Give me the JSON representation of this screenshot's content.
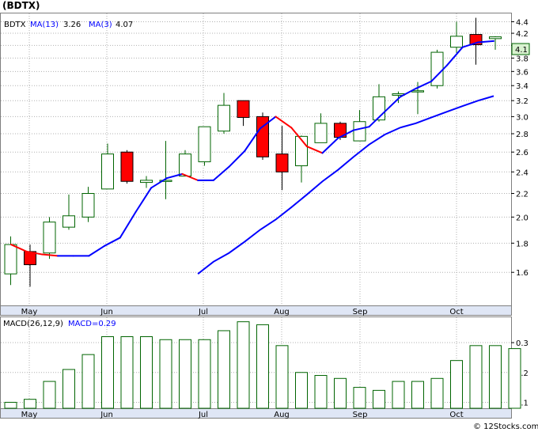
{
  "title": "(BDTX)",
  "watermark": "© 12Stocks.com",
  "price_panel": {
    "legend": {
      "ticker": "BDTX",
      "ma_fast_label": "MA(13)",
      "ma_fast_value": "3.26",
      "ma_slow_label": "MA(3)",
      "ma_slow_value": "4.07"
    },
    "last_price_label": "4.1"
  },
  "macd_panel": {
    "label": "MACD(26,12,9)",
    "value_label": "MACD=0.29"
  },
  "colors": {
    "up_border": "#006400",
    "down_fill": "#ff0000",
    "ma13": "#0000ff",
    "ma3_down": "#ff0000",
    "ma3_up": "#0000ff",
    "macd_bar": "#006400",
    "axis_bar": "#dfe6f5",
    "grid": "#b0b0b0"
  },
  "chart_data": [
    {
      "type": "candlestick",
      "title": "(BDTX)",
      "x_tick_labels": [
        "May",
        "Jun",
        "Jul",
        "Aug",
        "Sep",
        "Oct"
      ],
      "y_tick_labels": [
        "1.6",
        "1.8",
        "2.0",
        "2.2",
        "2.4",
        "2.6",
        "2.8",
        "3.0",
        "3.2",
        "3.4",
        "3.6",
        "3.8",
        "4.0",
        "4.2",
        "4.4"
      ],
      "y_scale": "log",
      "ylim": [
        1.4,
        4.55
      ],
      "grid": true,
      "weeks": [
        {
          "open": 1.59,
          "close": 1.79,
          "high": 1.85,
          "low": 1.52
        },
        {
          "open": 1.74,
          "close": 1.65,
          "high": 1.79,
          "low": 1.51
        },
        {
          "open": 1.73,
          "close": 1.96,
          "high": 2.0,
          "low": 1.69
        },
        {
          "open": 1.92,
          "close": 2.01,
          "high": 2.19,
          "low": 1.9
        },
        {
          "open": 2.0,
          "close": 2.2,
          "high": 2.26,
          "low": 1.96
        },
        {
          "open": 2.24,
          "close": 2.58,
          "high": 2.69,
          "low": 2.24
        },
        {
          "open": 2.6,
          "close": 2.31,
          "high": 2.62,
          "low": 2.29
        },
        {
          "open": 2.3,
          "close": 2.32,
          "high": 2.36,
          "low": 2.25
        },
        {
          "open": 2.31,
          "close": 2.32,
          "high": 2.72,
          "low": 2.15
        },
        {
          "open": 2.36,
          "close": 2.58,
          "high": 2.62,
          "low": 2.36
        },
        {
          "open": 2.5,
          "close": 2.88,
          "high": 2.88,
          "low": 2.46
        },
        {
          "open": 2.83,
          "close": 3.14,
          "high": 3.3,
          "low": 2.8
        },
        {
          "open": 3.2,
          "close": 2.99,
          "high": 3.2,
          "low": 2.89
        },
        {
          "open": 3.0,
          "close": 2.55,
          "high": 3.05,
          "low": 2.52
        },
        {
          "open": 2.58,
          "close": 2.4,
          "high": 2.89,
          "low": 2.23
        },
        {
          "open": 2.46,
          "close": 2.77,
          "high": 2.78,
          "low": 2.3
        },
        {
          "open": 2.7,
          "close": 2.92,
          "high": 3.04,
          "low": 2.7
        },
        {
          "open": 2.92,
          "close": 2.76,
          "high": 2.94,
          "low": 2.73
        },
        {
          "open": 2.72,
          "close": 2.94,
          "high": 3.08,
          "low": 2.72
        },
        {
          "open": 2.96,
          "close": 3.25,
          "high": 3.42,
          "low": 2.94
        },
        {
          "open": 3.27,
          "close": 3.29,
          "high": 3.32,
          "low": 3.17
        },
        {
          "open": 3.32,
          "close": 3.33,
          "high": 3.45,
          "low": 3.03
        },
        {
          "open": 3.4,
          "close": 3.89,
          "high": 3.93,
          "low": 3.36
        },
        {
          "open": 3.97,
          "close": 4.15,
          "high": 4.4,
          "low": 3.88
        },
        {
          "open": 4.18,
          "close": 4.01,
          "high": 4.47,
          "low": 3.7
        },
        {
          "open": 4.11,
          "close": 4.14,
          "high": 4.15,
          "low": 3.93
        }
      ],
      "ma13": [
        null,
        null,
        null,
        null,
        null,
        null,
        null,
        null,
        null,
        null,
        null,
        null,
        1.59,
        1.67,
        1.73,
        1.81,
        1.9,
        1.98,
        2.08,
        2.19,
        2.31,
        2.42,
        2.55,
        2.68,
        2.79,
        2.87,
        2.92,
        2.99,
        3.06,
        3.13,
        3.2,
        3.26
      ],
      "ma3": [
        1.79,
        1.74,
        1.72,
        1.71,
        1.71,
        1.71,
        1.78,
        1.84,
        2.04,
        2.25,
        2.34,
        2.38,
        2.32,
        2.32,
        2.45,
        2.61,
        2.86,
        3.0,
        2.87,
        2.66,
        2.59,
        2.75,
        2.84,
        2.88,
        3.06,
        3.25,
        3.36,
        3.46,
        3.69,
        3.97,
        4.05,
        4.07
      ]
    },
    {
      "type": "bar",
      "title": "MACD(26,12,9)",
      "x_tick_labels": [
        "May",
        "Jun",
        "Jul",
        "Aug",
        "Sep",
        "Oct"
      ],
      "y_tick_labels": [
        "0.1",
        "0.2",
        "0.3"
      ],
      "ylim": [
        0.08,
        0.385
      ],
      "values": [
        0.1,
        0.11,
        0.17,
        0.21,
        0.26,
        0.32,
        0.32,
        0.32,
        0.31,
        0.31,
        0.31,
        0.34,
        0.37,
        0.36,
        0.29,
        0.2,
        0.19,
        0.18,
        0.15,
        0.14,
        0.17,
        0.17,
        0.18,
        0.24,
        0.29,
        0.29,
        0.28
      ]
    }
  ]
}
